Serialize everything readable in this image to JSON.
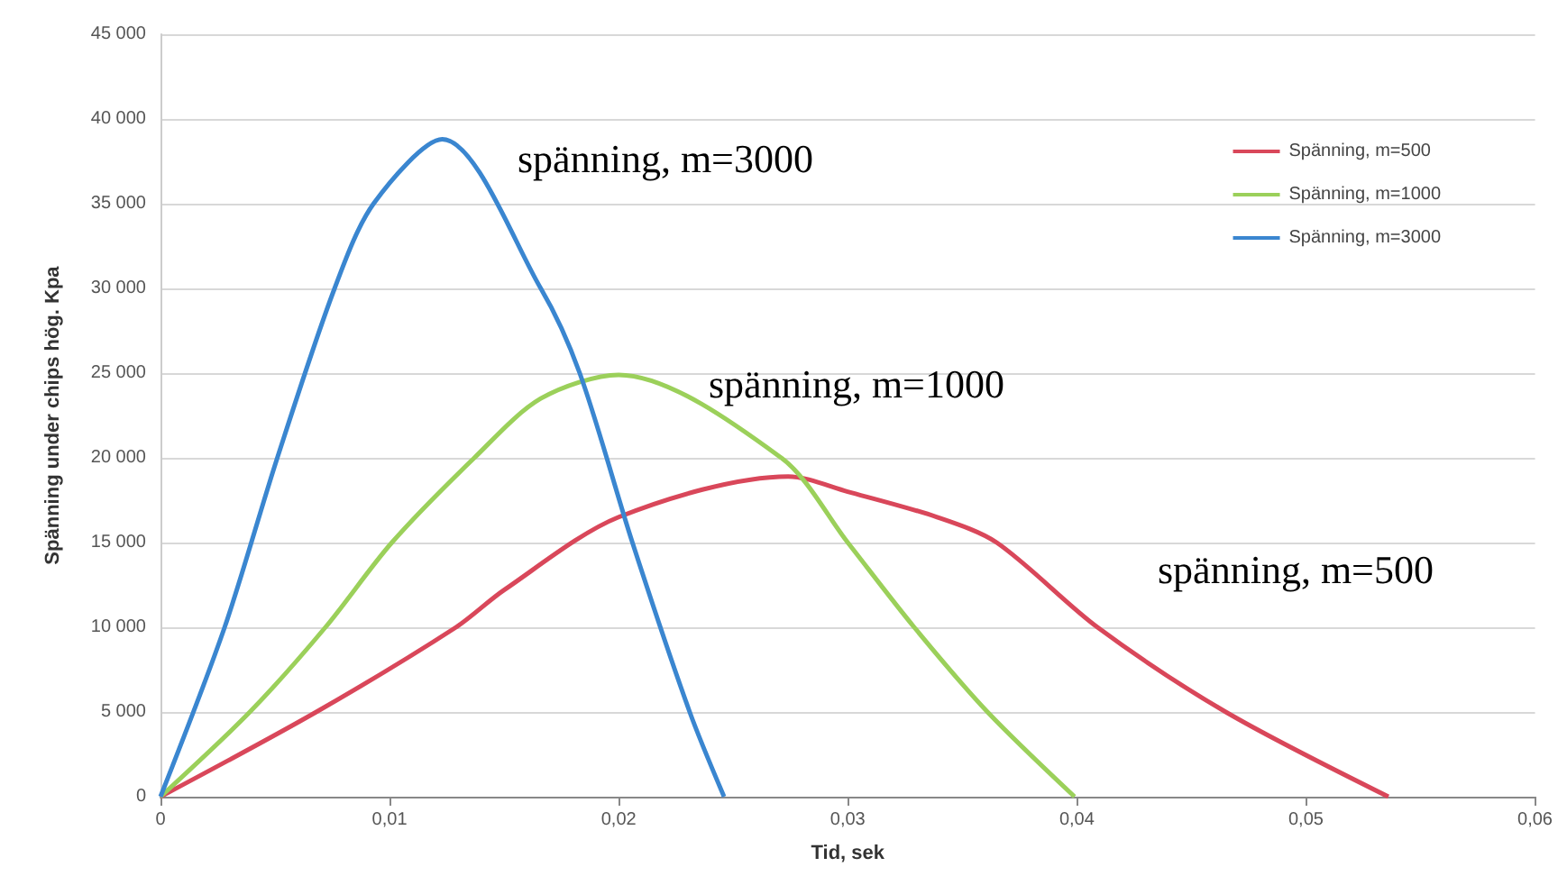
{
  "chart_data": {
    "type": "line",
    "xlabel": "Tid, sek",
    "ylabel": "Spänning under chips hög. Kpa",
    "series": [
      {
        "name": "Spänning, m=500",
        "color": "#d9475a",
        "x": [
          0,
          0.0068,
          0.0129,
          0.015,
          0.02,
          0.0274,
          0.03,
          0.0339,
          0.0365,
          0.0409,
          0.0465,
          0.0536
        ],
        "values": [
          0,
          5000,
          10000,
          12200,
          16500,
          18900,
          18000,
          16500,
          15000,
          10000,
          5000,
          0
        ]
      },
      {
        "name": "Spänning, m=1000",
        "color": "#9bd05a",
        "x": [
          0,
          0.0039,
          0.0072,
          0.0101,
          0.0137,
          0.0166,
          0.02,
          0.0271,
          0.03,
          0.0329,
          0.0361,
          0.0399
        ],
        "values": [
          0,
          5000,
          10000,
          15000,
          20000,
          23500,
          24900,
          20000,
          15000,
          10000,
          5000,
          0
        ]
      },
      {
        "name": "Spänning, m=3000",
        "color": "#3a86d0",
        "x": [
          0,
          0.0028,
          0.0051,
          0.0076,
          0.0093,
          0.0123,
          0.0166,
          0.0183,
          0.0206,
          0.0231,
          0.0246
        ],
        "values": [
          0,
          10000,
          20000,
          30000,
          35000,
          38800,
          30000,
          25000,
          15000,
          5000,
          0
        ]
      }
    ],
    "xlim": [
      0,
      0.06
    ],
    "xticks": [
      {
        "value": 0,
        "label": "0"
      },
      {
        "value": 0.01,
        "label": "0,01"
      },
      {
        "value": 0.02,
        "label": "0,02"
      },
      {
        "value": 0.03,
        "label": "0,03"
      },
      {
        "value": 0.04,
        "label": "0,04"
      },
      {
        "value": 0.05,
        "label": "0,05"
      },
      {
        "value": 0.06,
        "label": "0,06"
      }
    ],
    "ylim": [
      0,
      45000
    ],
    "yticks": [
      {
        "value": 0,
        "label": "0"
      },
      {
        "value": 5000,
        "label": "5 000"
      },
      {
        "value": 10000,
        "label": "10 000"
      },
      {
        "value": 15000,
        "label": "15 000"
      },
      {
        "value": 20000,
        "label": "20 000"
      },
      {
        "value": 25000,
        "label": "25 000"
      },
      {
        "value": 30000,
        "label": "30 000"
      },
      {
        "value": 35000,
        "label": "35 000"
      },
      {
        "value": 40000,
        "label": "40 000"
      },
      {
        "value": 45000,
        "label": "45 000"
      }
    ],
    "annotations": [
      "spänning, m=3000",
      "spänning, m=1000",
      "spänning, m=500"
    ],
    "grid": "y",
    "legend": "top right",
    "marker": "none",
    "line_style": "solid"
  }
}
